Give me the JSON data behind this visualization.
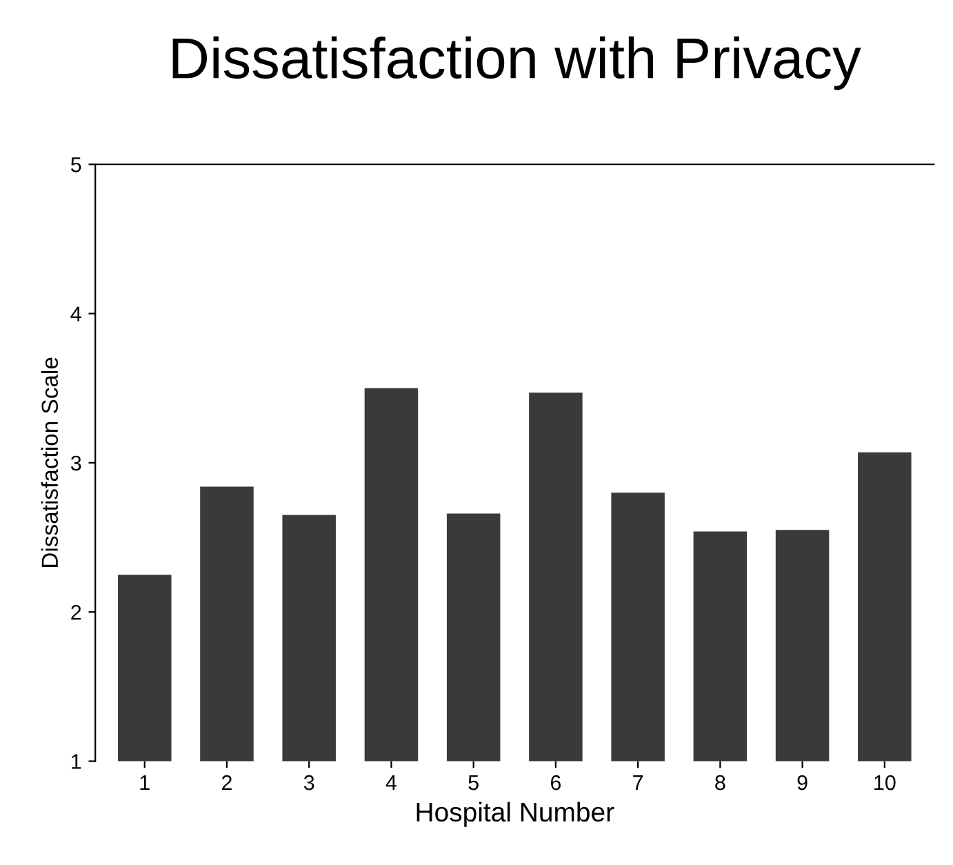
{
  "chart_data": {
    "type": "bar",
    "title": "Dissatisfaction with Privacy",
    "xlabel": "Hospital Number",
    "ylabel": "Dissatisfaction Scale",
    "categories": [
      "1",
      "2",
      "3",
      "4",
      "5",
      "6",
      "7",
      "8",
      "9",
      "10"
    ],
    "values": [
      2.25,
      2.84,
      2.65,
      3.5,
      2.66,
      3.47,
      2.8,
      2.54,
      2.55,
      3.07
    ],
    "color": "#3a3a3a",
    "ylim": [
      1,
      5
    ],
    "yticks": [
      1,
      2,
      3,
      4,
      5
    ],
    "grid": false,
    "legend": false
  }
}
